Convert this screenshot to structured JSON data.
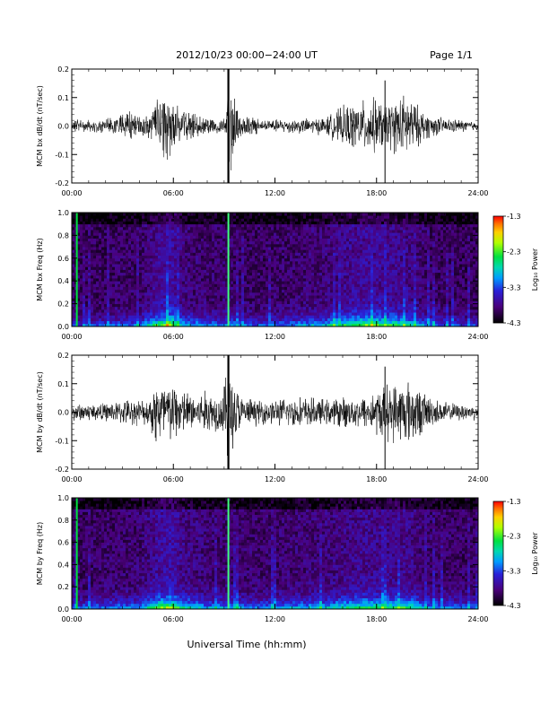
{
  "header": {
    "date_range": "2012/10/23  00:00−24:00 UT",
    "page": "Page 1/1"
  },
  "xaxis_label": "Universal Time (hh:mm)",
  "colorbar_label": "Log₁₀ Power",
  "chart_data": [
    {
      "type": "line",
      "ylabel": "MCM bx dB/dt (nT/sec)",
      "xlim": [
        0,
        24
      ],
      "ylim": [
        -0.2,
        0.2
      ],
      "xticks": [
        "00:00",
        "06:00",
        "12:00",
        "18:00",
        "24:00"
      ],
      "yticks": [
        "-0.2",
        "-0.1",
        "0.0",
        "0.1",
        "0.2"
      ],
      "series": [
        {
          "x": [
            0,
            2,
            3.3,
            4.5,
            5.0,
            5.4,
            5.8,
            6.3,
            7,
            8,
            9.1,
            9.25,
            10,
            11,
            12,
            13,
            14,
            15,
            15.8,
            16.5,
            17.2,
            17.8,
            18.5,
            19.2,
            19.8,
            20.3,
            21,
            22,
            23,
            24
          ],
          "amplitude": [
            0.025,
            0.025,
            0.06,
            0.04,
            0.1,
            0.15,
            0.12,
            0.08,
            0.05,
            0.035,
            0.03,
            0.2,
            0.05,
            0.03,
            0.025,
            0.03,
            0.03,
            0.035,
            0.07,
            0.09,
            0.1,
            0.11,
            0.09,
            0.11,
            0.13,
            0.09,
            0.05,
            0.03,
            0.025,
            0.02
          ]
        }
      ]
    },
    {
      "type": "heatmap",
      "ylabel": "MCM bx Freq (Hz)",
      "xlim": [
        0,
        24
      ],
      "ylim": [
        0,
        1.0
      ],
      "xticks": [
        "00:00",
        "06:00",
        "12:00",
        "18:00",
        "24:00"
      ],
      "yticks": [
        "0.0",
        "0.2",
        "0.4",
        "0.6",
        "0.8",
        "1.0"
      ],
      "colorbar": {
        "min": -4.3,
        "max": -1.3,
        "ticks": [
          "-1.3",
          "-2.3",
          "-3.3",
          "-4.3"
        ],
        "label": "Log₁₀ Power"
      },
      "spikes_hours": [
        0.3,
        9.25
      ],
      "activity": {
        "x": [
          0,
          2,
          4,
          5,
          5.8,
          6.5,
          8,
          9.5,
          11,
          13,
          15,
          16.5,
          17.5,
          18.5,
          19.8,
          21,
          22.5,
          24
        ],
        "level": [
          0.25,
          0.3,
          0.35,
          0.6,
          0.75,
          0.45,
          0.35,
          0.35,
          0.3,
          0.35,
          0.45,
          0.6,
          0.65,
          0.6,
          0.55,
          0.35,
          0.3,
          0.25
        ]
      }
    },
    {
      "type": "line",
      "ylabel": "MCM by dB/dt (nT/sec)",
      "xlim": [
        0,
        24
      ],
      "ylim": [
        -0.2,
        0.2
      ],
      "xticks": [
        "00:00",
        "06:00",
        "12:00",
        "18:00",
        "24:00"
      ],
      "yticks": [
        "-0.2",
        "-0.1",
        "0.0",
        "0.1",
        "0.2"
      ],
      "series": [
        {
          "x": [
            0,
            2,
            3.3,
            4.5,
            5.0,
            5.5,
            6.0,
            6.6,
            7.3,
            8,
            8.8,
            9.25,
            10,
            11,
            12,
            13,
            14,
            15,
            16,
            17,
            17.8,
            18.5,
            19.3,
            20,
            20.6,
            21.5,
            22.5,
            24
          ],
          "amplitude": [
            0.035,
            0.035,
            0.05,
            0.05,
            0.14,
            0.13,
            0.12,
            0.09,
            0.07,
            0.09,
            0.07,
            0.2,
            0.06,
            0.05,
            0.05,
            0.06,
            0.06,
            0.05,
            0.06,
            0.06,
            0.08,
            0.11,
            0.12,
            0.13,
            0.09,
            0.05,
            0.035,
            0.03
          ]
        }
      ]
    },
    {
      "type": "heatmap",
      "ylabel": "MCM by Freq (Hz)",
      "xlim": [
        0,
        24
      ],
      "ylim": [
        0,
        1.0
      ],
      "xticks": [
        "00:00",
        "06:00",
        "12:00",
        "18:00",
        "24:00"
      ],
      "yticks": [
        "0.0",
        "0.2",
        "0.4",
        "0.6",
        "0.8",
        "1.0"
      ],
      "colorbar": {
        "min": -4.3,
        "max": -1.3,
        "ticks": [
          "-1.3",
          "-2.3",
          "-3.3",
          "-4.3"
        ],
        "label": "Log₁₀ Power"
      },
      "spikes_hours": [
        0.3,
        9.25
      ],
      "activity": {
        "x": [
          0,
          2,
          4,
          5,
          5.8,
          6.5,
          8,
          9.5,
          11,
          13,
          15,
          16.5,
          17.5,
          18.5,
          19.8,
          21,
          22.5,
          24
        ],
        "level": [
          0.3,
          0.35,
          0.4,
          0.65,
          0.75,
          0.55,
          0.4,
          0.4,
          0.35,
          0.4,
          0.45,
          0.55,
          0.6,
          0.55,
          0.6,
          0.4,
          0.35,
          0.3
        ]
      }
    }
  ]
}
